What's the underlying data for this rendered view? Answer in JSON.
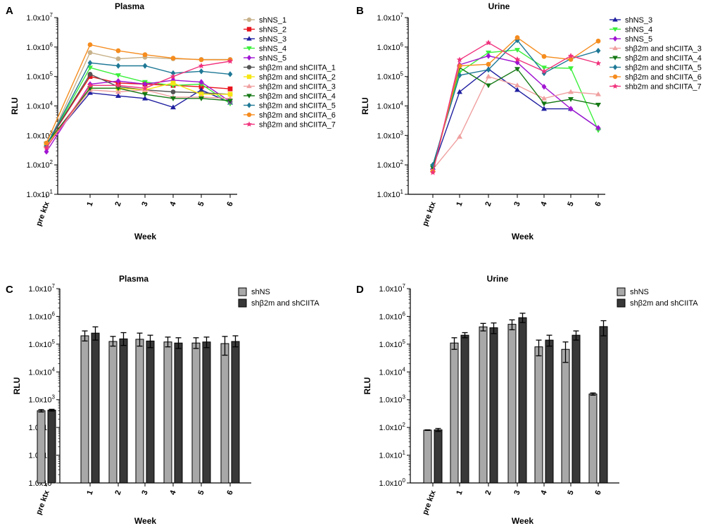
{
  "chart_data": [
    {
      "panel": "A",
      "type": "line",
      "title": "Plasma",
      "xlabel": "Week",
      "ylabel": "RLU",
      "yscale": "log",
      "ylim_exp": [
        1,
        7
      ],
      "ytick_labels": [
        "1.0x10^1",
        "1.0x10^2",
        "1.0x10^3",
        "1.0x10^4",
        "1.0x10^5",
        "1.0x10^6",
        "1.0x10^7"
      ],
      "categories": [
        "pre ktx",
        "1",
        "2",
        "3",
        "4",
        "5",
        "6"
      ],
      "legend_position": "right",
      "series": [
        {
          "name": "shNS_1",
          "color": "#c8b18a",
          "marker": "circle",
          "values": [
            400,
            650000,
            400000,
            450000,
            400000,
            380000,
            380000
          ]
        },
        {
          "name": "shNS_2",
          "color": "#e8141c",
          "marker": "square",
          "values": [
            500,
            100000,
            60000,
            55000,
            50000,
            45000,
            38000
          ]
        },
        {
          "name": "shNS_3",
          "color": "#1e1ea0",
          "marker": "triangle-up",
          "values": [
            480,
            28000,
            22000,
            18000,
            9000,
            35000,
            13000
          ]
        },
        {
          "name": "shNS_4",
          "color": "#3cf03c",
          "marker": "triangle-down",
          "values": [
            450,
            200000,
            110000,
            65000,
            50000,
            55000,
            12000
          ]
        },
        {
          "name": "shNS_5",
          "color": "#a014d2",
          "marker": "diamond",
          "values": [
            280,
            55000,
            70000,
            55000,
            75000,
            65000,
            14000
          ]
        },
        {
          "name": "shβ2m and shCIITA_1",
          "color": "#555555",
          "marker": "circle",
          "values": [
            500,
            120000,
            45000,
            35000,
            30000,
            28000,
            25000
          ]
        },
        {
          "name": "shβ2m and shCIITA_2",
          "color": "#f5e614",
          "marker": "square",
          "values": [
            450,
            40000,
            40000,
            35000,
            60000,
            25000,
            25000
          ]
        },
        {
          "name": "shβ2m and shCIITA_3",
          "color": "#f0a0a0",
          "marker": "triangle-up",
          "values": [
            420,
            35000,
            30000,
            35000,
            20000,
            20000,
            18000
          ]
        },
        {
          "name": "shβ2m and shCIITA_4",
          "color": "#147814",
          "marker": "triangle-down",
          "values": [
            520,
            40000,
            40000,
            25000,
            18000,
            18000,
            15000
          ]
        },
        {
          "name": "shβ2m and shCIITA_5",
          "color": "#1e7896",
          "marker": "diamond",
          "values": [
            450,
            290000,
            230000,
            230000,
            130000,
            150000,
            120000
          ]
        },
        {
          "name": "shβ2m and shCIITA_6",
          "color": "#f58c1e",
          "marker": "circle",
          "values": [
            550,
            1200000,
            750000,
            550000,
            420000,
            370000,
            370000
          ]
        },
        {
          "name": "shβ2m and shCIITA_7",
          "color": "#f0327d",
          "marker": "star",
          "values": [
            380,
            50000,
            50000,
            40000,
            100000,
            230000,
            330000
          ]
        }
      ]
    },
    {
      "panel": "B",
      "type": "line",
      "title": "Urine",
      "xlabel": "Week",
      "ylabel": "RLU",
      "yscale": "log",
      "ylim_exp": [
        1,
        7
      ],
      "ytick_labels": [
        "1.0x10^1",
        "1.0x10^2",
        "1.0x10^3",
        "1.0x10^4",
        "1.0x10^5",
        "1.0x10^6",
        "1.0x10^7"
      ],
      "categories": [
        "pre ktx",
        "1",
        "2",
        "3",
        "4",
        "5",
        "6"
      ],
      "legend_position": "right",
      "series": [
        {
          "name": "shNS_3",
          "color": "#1e1ea0",
          "marker": "triangle-up",
          "values": [
            80,
            30000,
            180000,
            35000,
            8000,
            8000,
            1800
          ]
        },
        {
          "name": "shNS_4",
          "color": "#3cf03c",
          "marker": "triangle-down",
          "values": [
            90,
            140000,
            650000,
            800000,
            200000,
            190000,
            1500
          ]
        },
        {
          "name": "shNS_5",
          "color": "#a014d2",
          "marker": "diamond",
          "values": [
            70,
            250000,
            500000,
            300000,
            45000,
            8000,
            1800
          ]
        },
        {
          "name": "shβ2m and shCIITA_3",
          "color": "#f0a0a0",
          "marker": "triangle-up",
          "values": [
            70,
            900,
            100000,
            50000,
            18000,
            30000,
            25000
          ]
        },
        {
          "name": "shβ2m and shCIITA_4",
          "color": "#147814",
          "marker": "triangle-down",
          "values": [
            80,
            200000,
            50000,
            180000,
            12000,
            17000,
            11000
          ]
        },
        {
          "name": "shβ2m and shCIITA_5",
          "color": "#1e7896",
          "marker": "diamond",
          "values": [
            100,
            110000,
            170000,
            1700000,
            130000,
            400000,
            750000
          ]
        },
        {
          "name": "shβ2m and shCIITA_6",
          "color": "#f58c1e",
          "marker": "circle",
          "values": [
            60,
            230000,
            260000,
            2100000,
            480000,
            380000,
            1600000
          ]
        },
        {
          "name": "shb2m and shCIITA_7",
          "color": "#f0327d",
          "marker": "star",
          "values": [
            55,
            370000,
            1400000,
            380000,
            150000,
            500000,
            280000
          ]
        }
      ]
    },
    {
      "panel": "C",
      "type": "bar",
      "title": "Plasma",
      "xlabel": "Week",
      "ylabel": "RLU",
      "yscale": "log",
      "ylim_exp": [
        0,
        7
      ],
      "ytick_labels": [
        "1.0x10^0",
        "1.0x10^1",
        "1.0x10^2",
        "1.0x10^3",
        "1.0x10^4",
        "1.0x10^5",
        "1.0x10^6",
        "1.0x10^7"
      ],
      "categories": [
        "pre ktx",
        "1",
        "2",
        "3",
        "4",
        "5",
        "6"
      ],
      "legend_position": "top-right",
      "series": [
        {
          "name": "shNS",
          "color": "#a8a8a8",
          "values": [
            400,
            200000,
            125000,
            150000,
            120000,
            110000,
            105000
          ],
          "err_low": [
            360,
            130000,
            85000,
            85000,
            80000,
            70000,
            40000
          ],
          "err_high": [
            440,
            300000,
            190000,
            250000,
            180000,
            170000,
            190000
          ]
        },
        {
          "name": "shβ2m and shCIITA",
          "color": "#383838",
          "values": [
            420,
            250000,
            155000,
            130000,
            110000,
            120000,
            125000
          ],
          "err_low": [
            390,
            140000,
            90000,
            75000,
            70000,
            75000,
            80000
          ],
          "err_high": [
            450,
            420000,
            260000,
            210000,
            170000,
            180000,
            200000
          ]
        }
      ]
    },
    {
      "panel": "D",
      "type": "bar",
      "title": "Urine",
      "xlabel": "Week",
      "ylabel": "RLU",
      "yscale": "log",
      "ylim_exp": [
        0,
        7
      ],
      "ytick_labels": [
        "1.0x10^0",
        "1.0x10^1",
        "1.0x10^2",
        "1.0x10^3",
        "1.0x10^4",
        "1.0x10^5",
        "1.0x10^6",
        "1.0x10^7"
      ],
      "categories": [
        "pre ktx",
        "1",
        "2",
        "3",
        "4",
        "5",
        "6"
      ],
      "legend_position": "top-right",
      "series": [
        {
          "name": "shNS",
          "color": "#a8a8a8",
          "values": [
            80,
            110000,
            420000,
            520000,
            80000,
            65000,
            1600
          ],
          "err_low": [
            78,
            65000,
            300000,
            330000,
            38000,
            22000,
            1450
          ],
          "err_high": [
            82,
            170000,
            560000,
            750000,
            140000,
            120000,
            1750
          ]
        },
        {
          "name": "shβ2m and shCIITA",
          "color": "#383838",
          "values": [
            82,
            210000,
            390000,
            900000,
            140000,
            210000,
            430000
          ],
          "err_low": [
            72,
            170000,
            240000,
            600000,
            85000,
            140000,
            200000
          ],
          "err_high": [
            92,
            260000,
            580000,
            1300000,
            210000,
            300000,
            700000
          ]
        }
      ]
    }
  ]
}
